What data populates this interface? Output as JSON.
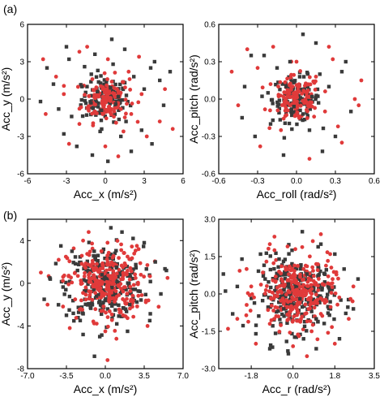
{
  "figure": {
    "panel_labels": [
      "(a)",
      "(b)"
    ],
    "colors": {
      "series_a": "#3a3a3a",
      "series_b": "#e03a3a"
    }
  },
  "chart_data": [
    {
      "panel": "(a)",
      "type": "scatter",
      "xlabel": "Acc_x (m/s²)",
      "ylabel": "Acc_y (m/s²)",
      "xlim": [
        -6,
        6
      ],
      "ylim": [
        -6,
        6
      ],
      "xticks": [
        "-6",
        "-3",
        "0",
        "3",
        "6"
      ],
      "yticks": [
        "6",
        "3",
        "0",
        "-3",
        "-6"
      ],
      "xtick_values": [
        -6,
        -3,
        0,
        3,
        6
      ],
      "ytick_values": [
        6,
        3,
        0,
        -3,
        -6
      ],
      "series": [
        {
          "marker": "square",
          "color": "#3a3a3a",
          "points": [
            [
              -2.8,
              3.2
            ],
            [
              1.5,
              4.0
            ],
            [
              3.5,
              2.5
            ],
            [
              -4.0,
              1.2
            ],
            [
              4.5,
              -0.5
            ],
            [
              -3.2,
              -2.8
            ],
            [
              2.0,
              -4.2
            ],
            [
              -1.0,
              -4.5
            ],
            [
              3.8,
              3.0
            ],
            [
              -4.5,
              2.5
            ],
            [
              0.5,
              4.8
            ],
            [
              -0.8,
              3.6
            ],
            [
              2.8,
              -2.5
            ],
            [
              -2.2,
              -3.8
            ],
            [
              4.2,
              1.5
            ],
            [
              -3.6,
              -0.8
            ],
            [
              1.2,
              -3.0
            ],
            [
              -1.6,
              2.6
            ],
            [
              3.0,
              0.8
            ],
            [
              -2.6,
              -1.4
            ],
            [
              0.6,
              2.8
            ],
            [
              -0.4,
              -2.6
            ],
            [
              2.2,
              1.8
            ],
            [
              -1.8,
              1.0
            ],
            [
              1.6,
              -1.8
            ],
            [
              -5.0,
              -0.2
            ],
            [
              5.0,
              2.2
            ],
            [
              0.2,
              -5.0
            ],
            [
              -3.0,
              4.2
            ],
            [
              3.6,
              -3.6
            ],
            [
              -0.6,
              0.6
            ],
            [
              0.8,
              -0.4
            ],
            [
              -0.3,
              -0.9
            ],
            [
              0.4,
              0.9
            ],
            [
              1.0,
              0.2
            ],
            [
              -1.1,
              -0.3
            ]
          ]
        },
        {
          "marker": "circle",
          "color": "#e03a3a",
          "points": [
            [
              -2.0,
              3.8
            ],
            [
              2.6,
              3.4
            ],
            [
              4.2,
              -1.8
            ],
            [
              -4.6,
              -1.2
            ],
            [
              1.0,
              -4.6
            ],
            [
              -1.4,
              4.2
            ],
            [
              3.2,
              -3.0
            ],
            [
              -3.8,
              1.8
            ],
            [
              4.6,
              0.8
            ],
            [
              -2.8,
              -3.6
            ],
            [
              0.0,
              -3.8
            ],
            [
              0.2,
              3.2
            ],
            [
              -3.2,
              0.4
            ],
            [
              2.8,
              0.4
            ],
            [
              1.8,
              2.2
            ],
            [
              -2.0,
              -2.0
            ],
            [
              2.0,
              -1.2
            ],
            [
              -1.0,
              1.6
            ],
            [
              1.4,
              -2.6
            ],
            [
              -4.8,
              3.2
            ],
            [
              5.2,
              -2.4
            ],
            [
              -0.8,
              -1.0
            ],
            [
              0.9,
              0.8
            ],
            [
              -0.5,
              0.2
            ],
            [
              0.3,
              -0.6
            ],
            [
              0.7,
              0.3
            ],
            [
              -0.9,
              0.7
            ],
            [
              0.1,
              1.1
            ],
            [
              -0.2,
              -0.3
            ],
            [
              1.2,
              -0.8
            ],
            [
              -1.3,
              -0.6
            ],
            [
              0.5,
              1.4
            ]
          ]
        }
      ]
    },
    {
      "panel": "(a)",
      "type": "scatter",
      "xlabel": "Acc_roll (rad/s²)",
      "ylabel": "Acc_pitch (rad/s²)",
      "xlim": [
        -0.6,
        0.6
      ],
      "ylim": [
        -0.6,
        0.6
      ],
      "xticks": [
        "-0.6",
        "-0.3",
        "0.0",
        "0.3",
        "0.6"
      ],
      "yticks": [
        "0.6",
        "0.3",
        "0.0",
        "-0.3",
        "-0.6"
      ],
      "xtick_values": [
        -0.6,
        -0.3,
        0,
        0.3,
        0.6
      ],
      "ytick_values": [
        0.6,
        0.3,
        0,
        -0.3,
        -0.6
      ],
      "series": [
        {
          "marker": "square",
          "color": "#3a3a3a",
          "points": [
            [
              -0.25,
              0.35
            ],
            [
              0.15,
              0.45
            ],
            [
              0.35,
              0.22
            ],
            [
              -0.4,
              0.1
            ],
            [
              0.42,
              -0.1
            ],
            [
              -0.32,
              -0.3
            ],
            [
              0.2,
              -0.42
            ],
            [
              -0.1,
              -0.45
            ],
            [
              0.05,
              0.52
            ],
            [
              -0.2,
              -0.2
            ],
            [
              0.25,
              0.1
            ],
            [
              -0.15,
              0.25
            ],
            [
              0.3,
              -0.3
            ],
            [
              -0.35,
              0.35
            ],
            [
              0.1,
              -0.25
            ],
            [
              -0.05,
              0.3
            ],
            [
              0.38,
              0.3
            ],
            [
              -0.42,
              -0.15
            ],
            [
              0.18,
              0.2
            ],
            [
              -0.22,
              0.05
            ],
            [
              0.05,
              -0.12
            ],
            [
              -0.08,
              0.1
            ],
            [
              0.12,
              0.02
            ],
            [
              -0.02,
              -0.06
            ]
          ]
        },
        {
          "marker": "circle",
          "color": "#e03a3a",
          "points": [
            [
              -0.3,
              0.25
            ],
            [
              0.28,
              0.32
            ],
            [
              0.45,
              0.0
            ],
            [
              -0.45,
              -0.05
            ],
            [
              0.1,
              -0.48
            ],
            [
              -0.18,
              0.42
            ],
            [
              0.32,
              -0.22
            ],
            [
              -0.28,
              -0.38
            ],
            [
              0.5,
              0.15
            ],
            [
              0.48,
              -0.05
            ],
            [
              -0.5,
              0.22
            ],
            [
              0.0,
              0.3
            ],
            [
              0.22,
              -0.1
            ],
            [
              -0.12,
              -0.25
            ],
            [
              0.15,
              0.18
            ],
            [
              -0.2,
              0.12
            ],
            [
              0.08,
              0.05
            ],
            [
              -0.05,
              -0.05
            ],
            [
              0.02,
              0.1
            ],
            [
              -0.1,
              0.02
            ],
            [
              0.12,
              -0.06
            ],
            [
              0.35,
              -0.35
            ],
            [
              -0.38,
              0.4
            ],
            [
              0.25,
              0.42
            ]
          ]
        }
      ]
    },
    {
      "panel": "(b)",
      "type": "scatter",
      "xlabel": "Acc_x (m/s²)",
      "ylabel": "Acc_y (m/s²)",
      "xlim": [
        -7.0,
        7.0
      ],
      "ylim": [
        -8,
        6
      ],
      "xticks": [
        "-7.0",
        "-3.5",
        "0.0",
        "3.5",
        "7.0"
      ],
      "yticks": [
        "4",
        "0",
        "-4",
        "-8"
      ],
      "xtick_values": [
        -7,
        -3.5,
        0,
        3.5,
        7
      ],
      "ytick_values": [
        4,
        0,
        -4,
        -8
      ],
      "series": [
        {
          "marker": "square",
          "color": "#3a3a3a",
          "points": [
            [
              -3.0,
              3.0
            ],
            [
              2.5,
              4.2
            ],
            [
              4.5,
              2.0
            ],
            [
              -5.0,
              0.5
            ],
            [
              5.0,
              -1.0
            ],
            [
              -3.5,
              -3.0
            ],
            [
              2.0,
              -4.5
            ],
            [
              -0.5,
              -5.0
            ],
            [
              0.5,
              5.2
            ],
            [
              1.5,
              4.8
            ],
            [
              -4.0,
              3.5
            ],
            [
              4.0,
              -3.5
            ],
            [
              -2.0,
              -4.8
            ],
            [
              3.5,
              3.8
            ],
            [
              -5.5,
              -1.5
            ],
            [
              5.5,
              1.2
            ],
            [
              -1.0,
              3.0
            ],
            [
              2.2,
              -2.0
            ],
            [
              -2.5,
              1.2
            ],
            [
              1.0,
              1.5
            ],
            [
              -0.8,
              -1.2
            ],
            [
              0.6,
              -0.4
            ],
            [
              -0.3,
              0.8
            ],
            [
              0.9,
              -2.5
            ]
          ]
        },
        {
          "marker": "circle",
          "color": "#e03a3a",
          "points": [
            [
              -2.0,
              4.0
            ],
            [
              3.0,
              3.2
            ],
            [
              4.8,
              -2.2
            ],
            [
              -5.2,
              -2.0
            ],
            [
              1.0,
              -5.2
            ],
            [
              -1.5,
              4.8
            ],
            [
              3.8,
              -4.0
            ],
            [
              -4.2,
              2.2
            ],
            [
              5.6,
              0.5
            ],
            [
              -3.2,
              -4.2
            ],
            [
              0.0,
              -4.5
            ],
            [
              0.2,
              3.8
            ],
            [
              -3.8,
              0.6
            ],
            [
              3.2,
              0.8
            ],
            [
              2.0,
              2.5
            ],
            [
              -2.2,
              -2.4
            ],
            [
              2.5,
              -1.6
            ],
            [
              -1.2,
              1.8
            ],
            [
              1.6,
              -3.0
            ],
            [
              -5.8,
              1.0
            ],
            [
              0.2,
              -7.2
            ],
            [
              -0.9,
              -0.9
            ],
            [
              0.9,
              0.6
            ],
            [
              -0.4,
              0.2
            ],
            [
              0.3,
              -0.5
            ],
            [
              0.7,
              0.3
            ],
            [
              -1.0,
              0.6
            ],
            [
              0.1,
              1.2
            ]
          ]
        }
      ]
    },
    {
      "panel": "(b)",
      "type": "scatter",
      "xlabel": "Acc_r (rad/s²)",
      "ylabel": "Acc_pitch (rad/s²)",
      "xlim": [
        -3.2,
        3.5
      ],
      "ylim": [
        -3.0,
        3.0
      ],
      "xticks": [
        "-1.8",
        "0.0",
        "1.8",
        "3.5"
      ],
      "yticks": [
        "3.0",
        "1.5",
        "0.0",
        "-1.5",
        "-3.0"
      ],
      "xtick_values": [
        -1.8,
        0,
        1.8,
        3.5
      ],
      "ytick_values": [
        3.0,
        1.5,
        0,
        -1.5,
        -3.0
      ],
      "series": [
        {
          "marker": "square",
          "color": "#3a3a3a",
          "points": [
            [
              -1.4,
              1.6
            ],
            [
              1.2,
              2.0
            ],
            [
              2.2,
              1.0
            ],
            [
              -2.4,
              0.3
            ],
            [
              2.6,
              -0.6
            ],
            [
              -1.6,
              -1.6
            ],
            [
              1.0,
              -2.2
            ],
            [
              -0.2,
              -2.4
            ],
            [
              0.4,
              2.5
            ],
            [
              -2.2,
              1.4
            ],
            [
              2.0,
              -1.8
            ],
            [
              -1.0,
              -2.2
            ],
            [
              1.8,
              1.6
            ],
            [
              -2.6,
              -0.8
            ],
            [
              2.8,
              0.6
            ],
            [
              -0.6,
              1.4
            ],
            [
              1.0,
              -1.0
            ],
            [
              -1.2,
              0.6
            ],
            [
              0.6,
              0.8
            ],
            [
              -0.4,
              -0.6
            ],
            [
              0.3,
              -0.2
            ],
            [
              -0.2,
              0.4
            ],
            [
              0.5,
              -1.3
            ],
            [
              -3.0,
              0.8
            ]
          ]
        },
        {
          "marker": "circle",
          "color": "#e03a3a",
          "points": [
            [
              -1.0,
              2.0
            ],
            [
              1.6,
              1.6
            ],
            [
              2.4,
              -1.0
            ],
            [
              -2.4,
              -1.0
            ],
            [
              0.6,
              -2.5
            ],
            [
              -0.8,
              2.3
            ],
            [
              1.8,
              -2.0
            ],
            [
              -2.0,
              1.0
            ],
            [
              2.6,
              0.3
            ],
            [
              -1.6,
              -2.0
            ],
            [
              0.0,
              -2.1
            ],
            [
              0.1,
              1.8
            ],
            [
              -1.8,
              0.3
            ],
            [
              1.6,
              0.4
            ],
            [
              1.0,
              1.2
            ],
            [
              -1.0,
              -1.2
            ],
            [
              1.2,
              -0.8
            ],
            [
              -0.6,
              0.9
            ],
            [
              0.8,
              -1.5
            ],
            [
              1.2,
              2.4
            ],
            [
              -2.8,
              -1.4
            ],
            [
              -0.4,
              -0.4
            ],
            [
              0.4,
              0.3
            ],
            [
              -0.2,
              0.1
            ]
          ]
        }
      ]
    }
  ]
}
